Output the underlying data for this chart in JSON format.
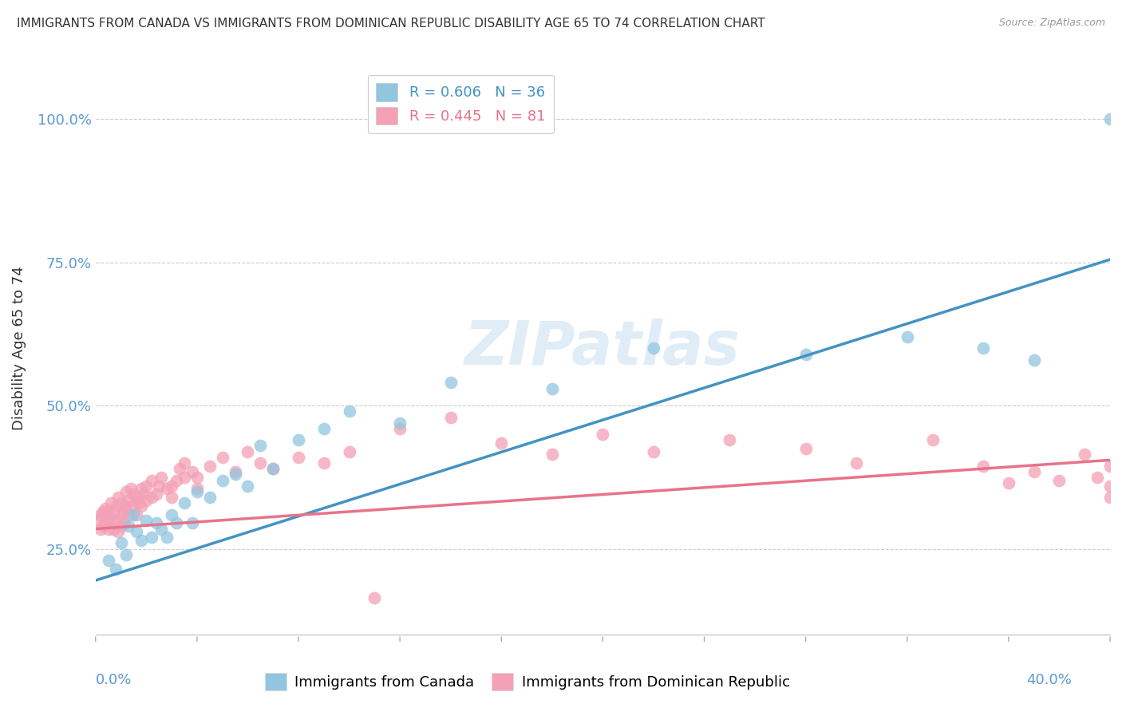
{
  "title": "IMMIGRANTS FROM CANADA VS IMMIGRANTS FROM DOMINICAN REPUBLIC DISABILITY AGE 65 TO 74 CORRELATION CHART",
  "source": "Source: ZipAtlas.com",
  "ylabel": "Disability Age 65 to 74",
  "canada_R": 0.606,
  "canada_N": 36,
  "dr_R": 0.445,
  "dr_N": 81,
  "canada_color": "#92c5de",
  "dr_color": "#f4a0b5",
  "canada_line_color": "#4393c3",
  "dr_line_color": "#e8738a",
  "ytick_labels": [
    "25.0%",
    "50.0%",
    "75.0%",
    "100.0%"
  ],
  "ytick_values": [
    0.25,
    0.5,
    0.75,
    1.0
  ],
  "canada_line_x0": 0.0,
  "canada_line_y0": 0.195,
  "canada_line_x1": 0.4,
  "canada_line_y1": 0.755,
  "dr_line_x0": 0.0,
  "dr_line_y0": 0.285,
  "dr_line_x1": 0.4,
  "dr_line_y1": 0.405,
  "canada_scatter_x": [
    0.005,
    0.008,
    0.01,
    0.012,
    0.013,
    0.015,
    0.016,
    0.018,
    0.02,
    0.022,
    0.024,
    0.026,
    0.028,
    0.03,
    0.032,
    0.035,
    0.038,
    0.04,
    0.045,
    0.05,
    0.055,
    0.06,
    0.065,
    0.07,
    0.08,
    0.09,
    0.1,
    0.12,
    0.14,
    0.18,
    0.22,
    0.28,
    0.32,
    0.35,
    0.37,
    0.4
  ],
  "canada_scatter_y": [
    0.23,
    0.215,
    0.26,
    0.24,
    0.29,
    0.31,
    0.28,
    0.265,
    0.3,
    0.27,
    0.295,
    0.285,
    0.27,
    0.31,
    0.295,
    0.33,
    0.295,
    0.35,
    0.34,
    0.37,
    0.38,
    0.36,
    0.43,
    0.39,
    0.44,
    0.46,
    0.49,
    0.47,
    0.54,
    0.53,
    0.6,
    0.59,
    0.62,
    0.6,
    0.58,
    1.0
  ],
  "dr_scatter_x": [
    0.001,
    0.002,
    0.002,
    0.003,
    0.003,
    0.004,
    0.004,
    0.005,
    0.005,
    0.006,
    0.006,
    0.007,
    0.007,
    0.008,
    0.008,
    0.009,
    0.009,
    0.01,
    0.01,
    0.01,
    0.011,
    0.011,
    0.012,
    0.012,
    0.013,
    0.013,
    0.014,
    0.015,
    0.015,
    0.016,
    0.016,
    0.017,
    0.018,
    0.018,
    0.019,
    0.02,
    0.02,
    0.022,
    0.022,
    0.024,
    0.025,
    0.026,
    0.028,
    0.03,
    0.03,
    0.032,
    0.033,
    0.035,
    0.035,
    0.038,
    0.04,
    0.04,
    0.045,
    0.05,
    0.055,
    0.06,
    0.065,
    0.07,
    0.08,
    0.09,
    0.1,
    0.11,
    0.12,
    0.14,
    0.16,
    0.18,
    0.2,
    0.22,
    0.25,
    0.28,
    0.3,
    0.33,
    0.35,
    0.36,
    0.37,
    0.38,
    0.39,
    0.395,
    0.4,
    0.4,
    0.4
  ],
  "dr_scatter_y": [
    0.3,
    0.285,
    0.31,
    0.29,
    0.315,
    0.295,
    0.32,
    0.285,
    0.31,
    0.3,
    0.33,
    0.285,
    0.315,
    0.3,
    0.325,
    0.28,
    0.34,
    0.31,
    0.29,
    0.33,
    0.315,
    0.295,
    0.325,
    0.35,
    0.31,
    0.335,
    0.355,
    0.325,
    0.345,
    0.31,
    0.34,
    0.33,
    0.355,
    0.325,
    0.345,
    0.335,
    0.36,
    0.34,
    0.37,
    0.345,
    0.36,
    0.375,
    0.355,
    0.36,
    0.34,
    0.37,
    0.39,
    0.375,
    0.4,
    0.385,
    0.375,
    0.355,
    0.395,
    0.41,
    0.385,
    0.42,
    0.4,
    0.39,
    0.41,
    0.4,
    0.42,
    0.165,
    0.46,
    0.48,
    0.435,
    0.415,
    0.45,
    0.42,
    0.44,
    0.425,
    0.4,
    0.44,
    0.395,
    0.365,
    0.385,
    0.37,
    0.415,
    0.375,
    0.36,
    0.395,
    0.34
  ],
  "xmin": 0.0,
  "xmax": 0.4,
  "ymin": 0.1,
  "ymax": 1.1
}
